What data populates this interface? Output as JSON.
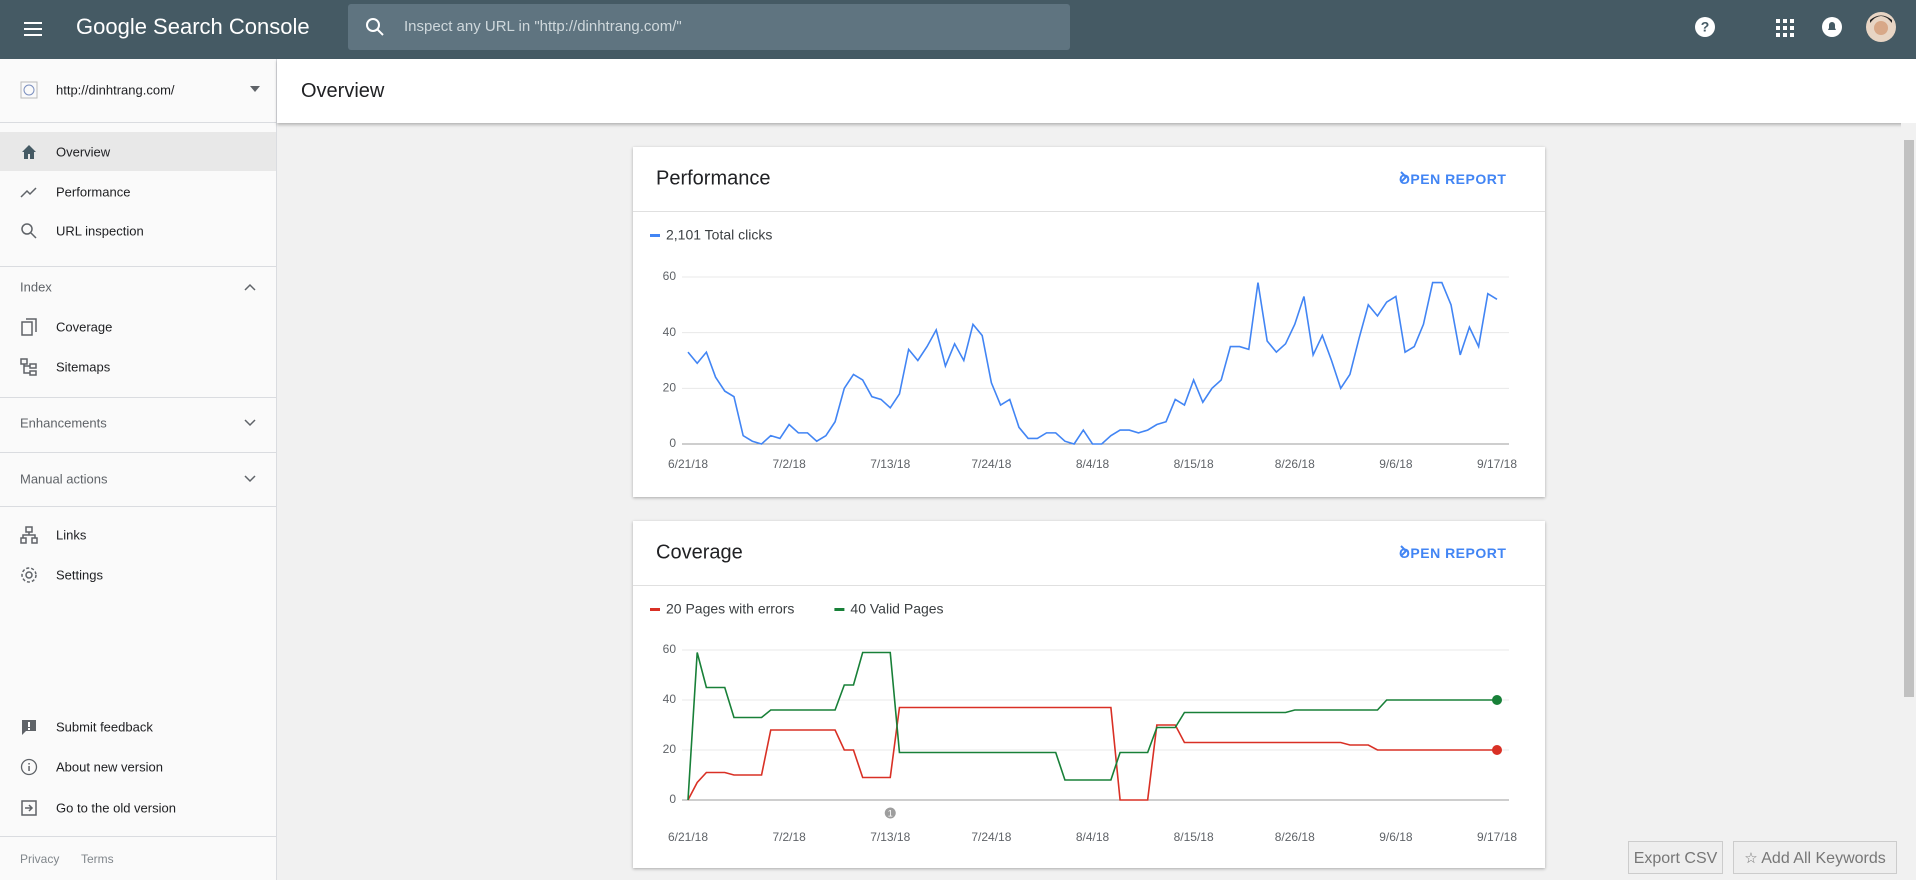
{
  "header": {
    "product": "Google Search Console",
    "search_placeholder": "Inspect any URL in \"http://dinhtrang.com/\""
  },
  "sidebar": {
    "property": "http://dinhtrang.com/",
    "items": [
      "Overview",
      "Performance",
      "URL inspection"
    ],
    "index": {
      "heading": "Index",
      "items": [
        "Coverage",
        "Sitemaps"
      ]
    },
    "enhancements": "Enhancements",
    "manual_actions": "Manual actions",
    "more": [
      "Links",
      "Settings"
    ],
    "footer_items": [
      "Submit feedback",
      "About new version",
      "Go to the old version"
    ],
    "links": [
      "Privacy",
      "Terms"
    ]
  },
  "page_title": "Overview",
  "card_links": [
    "OPEN REPORT",
    "OPEN REPORT"
  ],
  "buttons": [
    "Export CSV",
    "Add All Keywords"
  ],
  "chart_data": [
    {
      "type": "line",
      "title": "Performance",
      "categories": [
        "6/21/18",
        null,
        null,
        null,
        null,
        null,
        null,
        null,
        null,
        null,
        null,
        "7/2/18",
        null,
        null,
        null,
        null,
        null,
        null,
        null,
        null,
        null,
        null,
        "7/13/18",
        null,
        null,
        null,
        null,
        null,
        null,
        null,
        null,
        null,
        null,
        "7/24/18",
        null,
        null,
        null,
        null,
        null,
        null,
        null,
        null,
        null,
        null,
        "8/4/18",
        null,
        null,
        null,
        null,
        null,
        null,
        null,
        null,
        null,
        null,
        "8/15/18",
        null,
        null,
        null,
        null,
        null,
        null,
        null,
        null,
        null,
        null,
        "8/26/18",
        null,
        null,
        null,
        null,
        null,
        null,
        null,
        null,
        null,
        null,
        "9/6/18",
        null,
        null,
        null,
        null,
        null,
        null,
        null,
        null,
        null,
        null,
        "9/17/18"
      ],
      "series": [
        {
          "name": "2,101 Total clicks",
          "color": "#4285f4",
          "values": [
            33,
            29,
            33,
            24,
            19,
            17,
            3,
            1,
            0,
            3,
            2,
            7,
            4,
            4,
            1,
            3,
            8,
            20,
            25,
            23,
            17,
            16,
            13,
            18,
            34,
            30,
            35,
            41,
            28,
            36,
            30,
            43,
            39,
            22,
            14,
            16,
            6,
            2,
            2,
            4,
            4,
            1,
            0,
            5,
            0,
            0,
            3,
            5,
            5,
            4,
            5,
            7,
            8,
            16,
            14,
            23,
            15,
            20,
            23,
            35,
            35,
            34,
            58,
            37,
            33,
            36,
            43,
            53,
            32,
            39,
            30,
            20,
            25,
            38,
            50,
            46,
            51,
            53,
            33,
            35,
            43,
            58,
            58,
            50,
            32,
            42,
            35,
            54,
            52
          ]
        }
      ],
      "ylim": [
        0,
        60
      ],
      "yticks": [
        0,
        20,
        40,
        60
      ],
      "grid": true
    },
    {
      "type": "line",
      "title": "Coverage",
      "categories": [
        "6/21/18",
        null,
        null,
        null,
        null,
        null,
        null,
        null,
        null,
        null,
        null,
        "7/2/18",
        null,
        null,
        null,
        null,
        null,
        null,
        null,
        null,
        null,
        null,
        "7/13/18",
        null,
        null,
        null,
        null,
        null,
        null,
        null,
        null,
        null,
        null,
        "7/24/18",
        null,
        null,
        null,
        null,
        null,
        null,
        null,
        null,
        null,
        null,
        "8/4/18",
        null,
        null,
        null,
        null,
        null,
        null,
        null,
        null,
        null,
        null,
        "8/15/18",
        null,
        null,
        null,
        null,
        null,
        null,
        null,
        null,
        null,
        null,
        "8/26/18",
        null,
        null,
        null,
        null,
        null,
        null,
        null,
        null,
        null,
        null,
        "9/6/18",
        null,
        null,
        null,
        null,
        null,
        null,
        null,
        null,
        null,
        null,
        "9/17/18"
      ],
      "series": [
        {
          "name": "20 Pages with errors",
          "color": "#d93025",
          "values": [
            0,
            7,
            11,
            11,
            11,
            10,
            10,
            10,
            10,
            28,
            28,
            28,
            28,
            28,
            28,
            28,
            28,
            20,
            20,
            9,
            9,
            9,
            9,
            37,
            37,
            37,
            37,
            37,
            37,
            37,
            37,
            37,
            37,
            37,
            37,
            37,
            37,
            37,
            37,
            37,
            37,
            37,
            37,
            37,
            37,
            37,
            37,
            0,
            0,
            0,
            0,
            30,
            30,
            30,
            23,
            23,
            23,
            23,
            23,
            23,
            23,
            23,
            23,
            23,
            23,
            23,
            23,
            23,
            23,
            23,
            23,
            23,
            22,
            22,
            22,
            20,
            20,
            20,
            20,
            20,
            20,
            20,
            20,
            20,
            20,
            20,
            20,
            20,
            20
          ]
        },
        {
          "name": "40 Valid Pages",
          "color": "#188038",
          "values": [
            0,
            59,
            45,
            45,
            45,
            33,
            33,
            33,
            33,
            36,
            36,
            36,
            36,
            36,
            36,
            36,
            36,
            46,
            46,
            59,
            59,
            59,
            59,
            19,
            19,
            19,
            19,
            19,
            19,
            19,
            19,
            19,
            19,
            19,
            19,
            19,
            19,
            19,
            19,
            19,
            19,
            8,
            8,
            8,
            8,
            8,
            8,
            19,
            19,
            19,
            19,
            29,
            29,
            29,
            35,
            35,
            35,
            35,
            35,
            35,
            35,
            35,
            35,
            35,
            35,
            35,
            36,
            36,
            36,
            36,
            36,
            36,
            36,
            36,
            36,
            36,
            40,
            40,
            40,
            40,
            40,
            40,
            40,
            40,
            40,
            40,
            40,
            40,
            40
          ]
        }
      ],
      "ylim": [
        0,
        60
      ],
      "yticks": [
        0,
        20,
        40,
        60
      ],
      "grid": true,
      "end_markers": true,
      "annotations": [
        {
          "x": "7/13/18",
          "text": "1"
        }
      ]
    }
  ]
}
